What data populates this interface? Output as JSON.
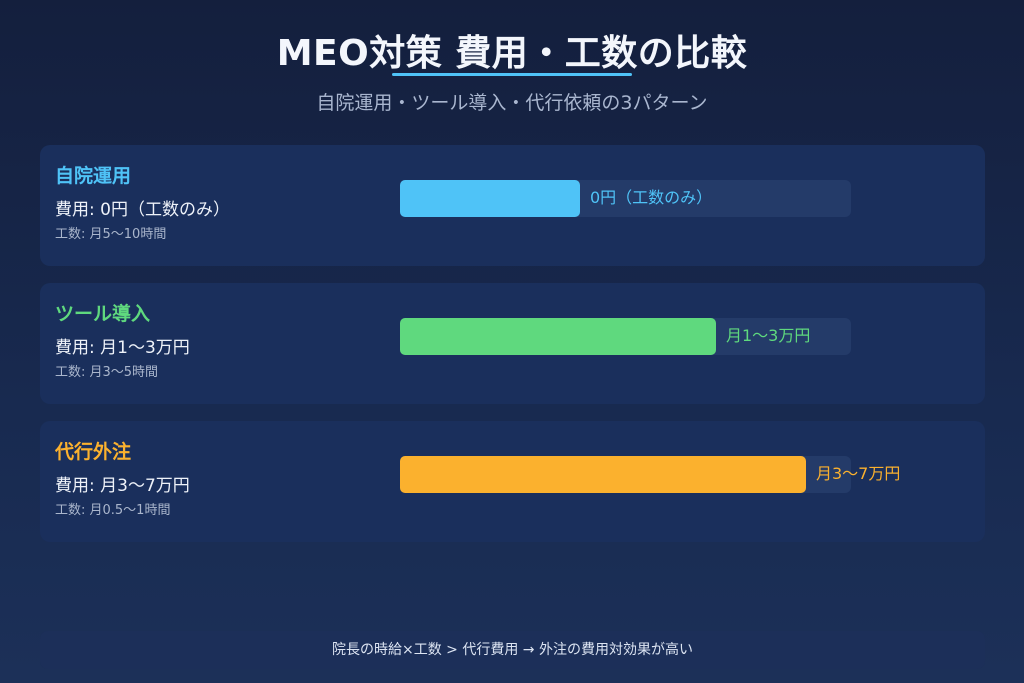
{
  "header": {
    "title": "MEO対策 費用・工数の比較",
    "subtitle": "自院運用・ツール導入・代行依頼の3パターン"
  },
  "chart_data": {
    "type": "bar",
    "orientation": "horizontal",
    "categories": [
      "自院運用",
      "ツール導入",
      "代行外注"
    ],
    "relative_values": [
      0.4,
      0.7,
      0.9
    ],
    "value_labels": [
      "0円（工数のみ）",
      "月1〜3万円",
      "月3〜7万円"
    ],
    "costs": [
      "費用: 0円（工数のみ）",
      "費用: 月1〜3万円",
      "費用: 月3〜7万円"
    ],
    "efforts": [
      "工数: 月5〜10時間",
      "工数: 月3〜5時間",
      "工数: 月0.5〜1時間"
    ],
    "colors": [
      "#4fc3f7",
      "#5fd97e",
      "#fbb12e"
    ],
    "track_color": "#243b69",
    "grid": false
  },
  "footer": {
    "note": "院長の時給×工数 > 代行費用 → 外注の費用対効果が高い"
  }
}
